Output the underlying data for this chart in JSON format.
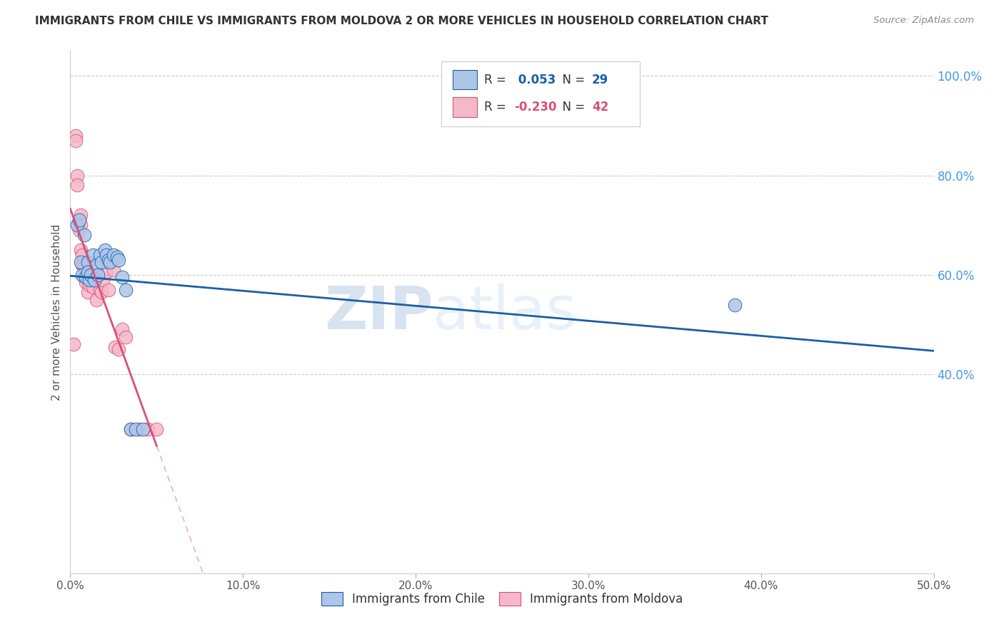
{
  "title": "IMMIGRANTS FROM CHILE VS IMMIGRANTS FROM MOLDOVA 2 OR MORE VEHICLES IN HOUSEHOLD CORRELATION CHART",
  "source": "Source: ZipAtlas.com",
  "xlabel_bottom": [
    "Immigrants from Chile",
    "Immigrants from Moldova"
  ],
  "ylabel": "2 or more Vehicles in Household",
  "xmin": 0.0,
  "xmax": 0.5,
  "ymin": 0.0,
  "ymax": 1.05,
  "ytick_vals": [
    0.4,
    0.6,
    0.8,
    1.0
  ],
  "ytick_labels": [
    "40.0%",
    "60.0%",
    "80.0%",
    "100.0%"
  ],
  "xtick_vals": [
    0.0,
    0.1,
    0.2,
    0.3,
    0.4,
    0.5
  ],
  "xtick_labels": [
    "0.0%",
    "10.0%",
    "20.0%",
    "30.0%",
    "40.0%",
    "50.0%"
  ],
  "chile_R": 0.053,
  "chile_N": 29,
  "moldova_R": -0.23,
  "moldova_N": 42,
  "chile_color": "#adc6e8",
  "moldova_color": "#f5b8c8",
  "chile_line_color": "#1a5fa8",
  "moldova_line_color": "#d94f7a",
  "watermark_zip": "ZIP",
  "watermark_atlas": "atlas",
  "chile_x": [
    0.004,
    0.005,
    0.006,
    0.007,
    0.008,
    0.009,
    0.01,
    0.01,
    0.011,
    0.012,
    0.013,
    0.014,
    0.015,
    0.016,
    0.017,
    0.018,
    0.02,
    0.021,
    0.022,
    0.023,
    0.025,
    0.027,
    0.028,
    0.03,
    0.032,
    0.035,
    0.038,
    0.042,
    0.385
  ],
  "chile_y": [
    0.7,
    0.71,
    0.625,
    0.6,
    0.68,
    0.595,
    0.625,
    0.605,
    0.59,
    0.6,
    0.64,
    0.59,
    0.62,
    0.6,
    0.64,
    0.625,
    0.65,
    0.64,
    0.63,
    0.625,
    0.64,
    0.635,
    0.63,
    0.595,
    0.57,
    0.29,
    0.29,
    0.29,
    0.54
  ],
  "moldova_x": [
    0.002,
    0.003,
    0.003,
    0.004,
    0.004,
    0.005,
    0.005,
    0.006,
    0.006,
    0.006,
    0.007,
    0.007,
    0.008,
    0.008,
    0.009,
    0.009,
    0.01,
    0.01,
    0.01,
    0.011,
    0.011,
    0.012,
    0.013,
    0.013,
    0.014,
    0.015,
    0.016,
    0.017,
    0.018,
    0.019,
    0.02,
    0.021,
    0.022,
    0.025,
    0.026,
    0.028,
    0.03,
    0.032,
    0.035,
    0.04,
    0.045,
    0.05
  ],
  "moldova_y": [
    0.46,
    0.88,
    0.87,
    0.8,
    0.78,
    0.71,
    0.69,
    0.72,
    0.7,
    0.65,
    0.64,
    0.62,
    0.615,
    0.595,
    0.6,
    0.585,
    0.605,
    0.595,
    0.565,
    0.605,
    0.58,
    0.6,
    0.59,
    0.575,
    0.595,
    0.55,
    0.595,
    0.57,
    0.565,
    0.59,
    0.625,
    0.605,
    0.57,
    0.61,
    0.455,
    0.45,
    0.49,
    0.475,
    0.29,
    0.29,
    0.29,
    0.29
  ]
}
